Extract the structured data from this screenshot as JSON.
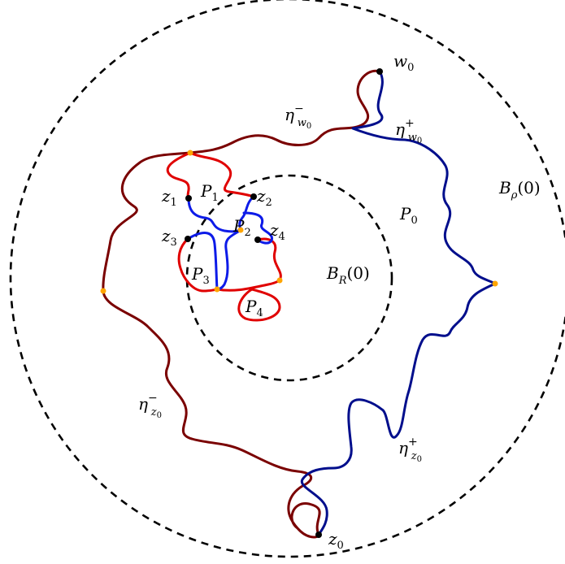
{
  "colors": {
    "dark_red": "#7a0000",
    "red": "#e00000",
    "dark_blue": "#000e8c",
    "blue": "#0d1be8",
    "orange": "#ffa500",
    "black": "#000000"
  },
  "circles": {
    "outer": {
      "base": "B",
      "sub": "ρ",
      "arg": "(0)"
    },
    "inner": {
      "base": "B",
      "sub": "R",
      "arg": "(0)"
    }
  },
  "points": {
    "w0": {
      "base": "w",
      "sub": "0"
    },
    "z0": {
      "base": "z",
      "sub": "0"
    },
    "z1": {
      "base": "z",
      "sub": "1"
    },
    "z2": {
      "base": "z",
      "sub": "2"
    },
    "z3": {
      "base": "z",
      "sub": "3"
    },
    "z4": {
      "base": "z",
      "sub": "4"
    }
  },
  "curves": {
    "eta_w0_minus": {
      "base": "η",
      "sub_base": "w",
      "sub_sub": "0",
      "sup": "−"
    },
    "eta_w0_plus": {
      "base": "η",
      "sub_base": "w",
      "sub_sub": "0",
      "sup": "+"
    },
    "eta_z0_minus": {
      "base": "η",
      "sub_base": "z",
      "sub_sub": "0",
      "sup": "−"
    },
    "eta_z0_plus": {
      "base": "η",
      "sub_base": "z",
      "sub_sub": "0",
      "sup": "+"
    }
  },
  "regions": {
    "P0": {
      "base": "P",
      "sub": "0"
    },
    "P1": {
      "base": "P",
      "sub": "1"
    },
    "P2": {
      "base": "P",
      "sub": "2"
    },
    "P3": {
      "base": "P",
      "sub": "3"
    },
    "P4": {
      "base": "P",
      "sub": "4"
    }
  }
}
